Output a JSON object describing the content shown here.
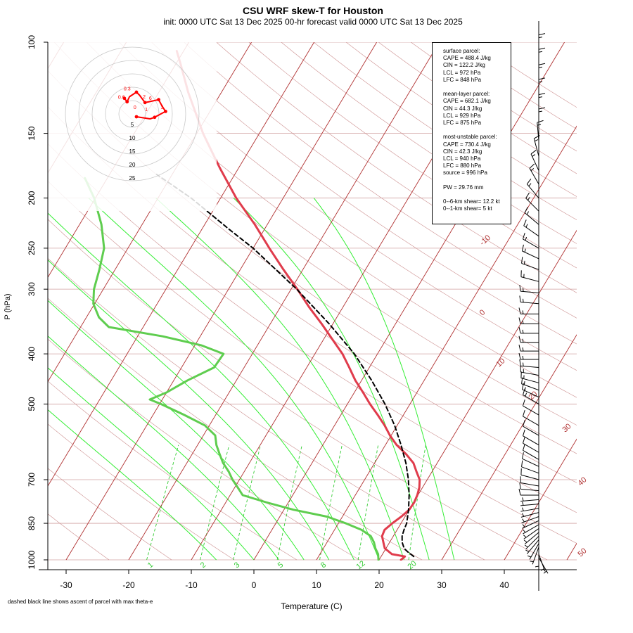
{
  "title": "CSU WRF skew-T for Houston",
  "subtitle": "init: 0000 UTC Sat 13 Dec 2025     00-hr forecast valid 0000 UTC Sat 13 Dec 2025",
  "footnote": "dashed black line shows ascent of parcel with max theta-e",
  "info_lines": [
    "surface parcel:",
    "CAPE = 488.4 J/kg",
    "CIN = 122.2 J/kg",
    "LCL = 972 hPa",
    "LFC = 848 hPa",
    "",
    "mean-layer parcel:",
    "CAPE = 682.1 J/kg",
    "CIN = 44.3 J/kg",
    "LCL = 929 hPa",
    "LFC = 875 hPa",
    "",
    "most-unstable parcel:",
    "CAPE = 730.4 J/kg",
    "CIN = 42.3 J/kg",
    "LCL = 940 hPa",
    "LFC = 880 hPa",
    "source = 996 hPa",
    "",
    "PW =  29.76 mm",
    "",
    "0--6-km shear= 12.2 kt",
    "0--1-km shear= 5 kt"
  ],
  "colors": {
    "temperature": "#e03c4c",
    "dewpoint": "#5fcd4f",
    "parcel": "#000000",
    "isotherm": "#b03030",
    "dry_adiabat": "#cc8f8f",
    "moist_adiabat": "#33ee33",
    "mixing_ratio": "#33cc33",
    "hodograph": "#ff0000"
  },
  "chart_data": {
    "type": "line",
    "title": "CSU WRF skew-T for Houston",
    "xlabel": "Temperature (C)",
    "ylabel": "P (hPa)",
    "pressure_scale": "log",
    "xlim": [
      -30,
      40
    ],
    "ylim": [
      1000,
      100
    ],
    "x_ticks": [
      -30,
      -20,
      -10,
      0,
      10,
      20,
      30,
      40
    ],
    "y_ticks": [
      100,
      150,
      200,
      250,
      300,
      400,
      500,
      700,
      850,
      1000
    ],
    "isotherm_labels": [
      -10,
      0,
      10,
      20,
      30,
      40,
      50
    ],
    "mixing_ratio_labels": [
      "1",
      "2",
      "3",
      "5",
      "8",
      "12",
      "20"
    ],
    "series": [
      {
        "key": "temperature",
        "points": [
          [
            1000,
            23.5
          ],
          [
            985,
            23.8
          ],
          [
            975,
            21.5
          ],
          [
            950,
            19.8
          ],
          [
            925,
            19.0
          ],
          [
            900,
            18.2
          ],
          [
            875,
            18.0
          ],
          [
            850,
            18.6
          ],
          [
            825,
            19.4
          ],
          [
            800,
            20.0
          ],
          [
            775,
            20.1
          ],
          [
            750,
            19.9
          ],
          [
            725,
            19.5
          ],
          [
            700,
            18.8
          ],
          [
            675,
            17.5
          ],
          [
            650,
            16.2
          ],
          [
            625,
            14.2
          ],
          [
            600,
            11.8
          ],
          [
            575,
            9.8
          ],
          [
            550,
            8.0
          ],
          [
            525,
            5.9
          ],
          [
            500,
            3.6
          ],
          [
            475,
            1.4
          ],
          [
            450,
            -1.0
          ],
          [
            425,
            -3.2
          ],
          [
            400,
            -5.6
          ],
          [
            375,
            -8.6
          ],
          [
            350,
            -11.8
          ],
          [
            325,
            -15.4
          ],
          [
            300,
            -19.0
          ],
          [
            275,
            -23.1
          ],
          [
            250,
            -27.4
          ],
          [
            225,
            -32.0
          ],
          [
            200,
            -37.5
          ],
          [
            175,
            -43.0
          ],
          [
            160,
            -46.5
          ],
          [
            150,
            -49.0
          ],
          [
            125,
            -55.3
          ],
          [
            110,
            -59.3
          ],
          [
            104,
            -61.1
          ]
        ]
      },
      {
        "key": "dewpoint",
        "points": [
          [
            1000,
            19.9
          ],
          [
            975,
            19.3
          ],
          [
            950,
            18.3
          ],
          [
            925,
            17.5
          ],
          [
            900,
            16.4
          ],
          [
            875,
            14.3
          ],
          [
            850,
            11.2
          ],
          [
            825,
            7.5
          ],
          [
            800,
            1.5
          ],
          [
            775,
            -3.4
          ],
          [
            750,
            -8.0
          ],
          [
            725,
            -9.5
          ],
          [
            700,
            -11.1
          ],
          [
            675,
            -12.5
          ],
          [
            650,
            -14.2
          ],
          [
            625,
            -15.6
          ],
          [
            600,
            -17.0
          ],
          [
            575,
            -18.1
          ],
          [
            550,
            -20.7
          ],
          [
            525,
            -25.0
          ],
          [
            500,
            -29.8
          ],
          [
            490,
            -32.0
          ],
          [
            475,
            -30.0
          ],
          [
            450,
            -27.8
          ],
          [
            425,
            -24.8
          ],
          [
            400,
            -24.6
          ],
          [
            385,
            -29.0
          ],
          [
            370,
            -36.0
          ],
          [
            355,
            -45.5
          ],
          [
            340,
            -48.0
          ],
          [
            320,
            -50.2
          ],
          [
            300,
            -51.5
          ],
          [
            275,
            -52.5
          ],
          [
            250,
            -53.8
          ],
          [
            225,
            -56.5
          ],
          [
            200,
            -60.2
          ],
          [
            183,
            -63.6
          ]
        ]
      },
      {
        "key": "parcel",
        "dashed": true,
        "points": [
          [
            985,
            25.2
          ],
          [
            965,
            23.8
          ],
          [
            950,
            22.9
          ],
          [
            925,
            22.0
          ],
          [
            900,
            21.4
          ],
          [
            875,
            21.1
          ],
          [
            850,
            20.9
          ],
          [
            800,
            19.9
          ],
          [
            750,
            18.6
          ],
          [
            700,
            17.0
          ],
          [
            650,
            15.0
          ],
          [
            600,
            12.5
          ],
          [
            550,
            9.6
          ],
          [
            500,
            6.0
          ],
          [
            450,
            1.6
          ],
          [
            400,
            -3.7
          ],
          [
            350,
            -10.6
          ],
          [
            300,
            -19.1
          ],
          [
            250,
            -30.0
          ],
          [
            230,
            -35.6
          ],
          [
            200,
            -44.7
          ],
          [
            180,
            -52.5
          ]
        ]
      }
    ],
    "wind_barbs": [
      {
        "p": 990,
        "dir": 150,
        "kt": 5
      },
      {
        "p": 975,
        "dir": 160,
        "kt": 5
      },
      {
        "p": 960,
        "dir": 180,
        "kt": 5
      },
      {
        "p": 945,
        "dir": 200,
        "kt": 5
      },
      {
        "p": 930,
        "dir": 210,
        "kt": 5
      },
      {
        "p": 915,
        "dir": 220,
        "kt": 5
      },
      {
        "p": 900,
        "dir": 225,
        "kt": 5
      },
      {
        "p": 885,
        "dir": 230,
        "kt": 5
      },
      {
        "p": 870,
        "dir": 235,
        "kt": 5
      },
      {
        "p": 855,
        "dir": 240,
        "kt": 5
      },
      {
        "p": 840,
        "dir": 245,
        "kt": 5
      },
      {
        "p": 825,
        "dir": 250,
        "kt": 5
      },
      {
        "p": 810,
        "dir": 255,
        "kt": 5
      },
      {
        "p": 795,
        "dir": 260,
        "kt": 5
      },
      {
        "p": 780,
        "dir": 265,
        "kt": 5
      },
      {
        "p": 765,
        "dir": 265,
        "kt": 5
      },
      {
        "p": 750,
        "dir": 270,
        "kt": 10
      },
      {
        "p": 735,
        "dir": 275,
        "kt": 10
      },
      {
        "p": 720,
        "dir": 280,
        "kt": 10
      },
      {
        "p": 700,
        "dir": 285,
        "kt": 10
      },
      {
        "p": 680,
        "dir": 290,
        "kt": 10
      },
      {
        "p": 660,
        "dir": 295,
        "kt": 10
      },
      {
        "p": 640,
        "dir": 300,
        "kt": 10
      },
      {
        "p": 620,
        "dir": 300,
        "kt": 10
      },
      {
        "p": 600,
        "dir": 300,
        "kt": 10
      },
      {
        "p": 575,
        "dir": 300,
        "kt": 10
      },
      {
        "p": 550,
        "dir": 300,
        "kt": 10
      },
      {
        "p": 525,
        "dir": 300,
        "kt": 10
      },
      {
        "p": 500,
        "dir": 300,
        "kt": 15
      },
      {
        "p": 485,
        "dir": 295,
        "kt": 15
      },
      {
        "p": 470,
        "dir": 290,
        "kt": 15
      },
      {
        "p": 455,
        "dir": 285,
        "kt": 15
      },
      {
        "p": 440,
        "dir": 280,
        "kt": 15
      },
      {
        "p": 425,
        "dir": 275,
        "kt": 15
      },
      {
        "p": 410,
        "dir": 270,
        "kt": 15
      },
      {
        "p": 395,
        "dir": 270,
        "kt": 15
      },
      {
        "p": 380,
        "dir": 270,
        "kt": 15
      },
      {
        "p": 365,
        "dir": 270,
        "kt": 15
      },
      {
        "p": 350,
        "dir": 270,
        "kt": 15
      },
      {
        "p": 335,
        "dir": 270,
        "kt": 15
      },
      {
        "p": 320,
        "dir": 275,
        "kt": 15
      },
      {
        "p": 305,
        "dir": 275,
        "kt": 15
      },
      {
        "p": 290,
        "dir": 285,
        "kt": 15
      },
      {
        "p": 275,
        "dir": 290,
        "kt": 15
      },
      {
        "p": 262,
        "dir": 295,
        "kt": 15
      },
      {
        "p": 250,
        "dir": 300,
        "kt": 15
      },
      {
        "p": 237,
        "dir": 305,
        "kt": 15
      },
      {
        "p": 225,
        "dir": 310,
        "kt": 15
      },
      {
        "p": 212,
        "dir": 315,
        "kt": 15
      },
      {
        "p": 200,
        "dir": 320,
        "kt": 15
      },
      {
        "p": 188,
        "dir": 330,
        "kt": 15
      },
      {
        "p": 177,
        "dir": 335,
        "kt": 15
      },
      {
        "p": 166,
        "dir": 345,
        "kt": 15
      },
      {
        "p": 155,
        "dir": 355,
        "kt": 15
      },
      {
        "p": 146,
        "dir": 0,
        "kt": 15
      },
      {
        "p": 137,
        "dir": 0,
        "kt": 15
      },
      {
        "p": 128,
        "dir": 0,
        "kt": 15
      },
      {
        "p": 120,
        "dir": 0,
        "kt": 15
      },
      {
        "p": 112,
        "dir": 0,
        "kt": 15
      },
      {
        "p": 105,
        "dir": 0,
        "kt": 15
      }
    ],
    "hodograph": {
      "ring_labels": [
        "5",
        "10",
        "15",
        "20",
        "25"
      ],
      "point_labels": [
        {
          "label": "0",
          "u": 1.0,
          "v": 1.8
        },
        {
          "label": "1",
          "u": 5.3,
          "v": 1.0
        },
        {
          "label": "2",
          "u": 4.5,
          "v": 5.8
        },
        {
          "label": "3",
          "u": 11.2,
          "v": 1.9
        },
        {
          "label": "6",
          "u": 6.8,
          "v": 5.2
        },
        {
          "label": "0.6",
          "u": -4.0,
          "v": 5.6
        },
        {
          "label": "0.3",
          "u": -1.9,
          "v": 8.8
        }
      ],
      "trace": [
        [
          0,
          0
        ],
        [
          5.1,
          -0.8
        ],
        [
          6.8,
          -0.2
        ],
        [
          8.5,
          0.7
        ],
        [
          10.9,
          2.0
        ],
        [
          9.7,
          3.8
        ],
        [
          8.3,
          6.4
        ],
        [
          5.5,
          5.8
        ],
        [
          3.2,
          5.3
        ],
        [
          1.2,
          8.0
        ],
        [
          0.0,
          9.2
        ],
        [
          -2.6,
          7.5
        ],
        [
          -3.5,
          5.6
        ],
        [
          -4.5,
          6.9
        ]
      ]
    }
  }
}
